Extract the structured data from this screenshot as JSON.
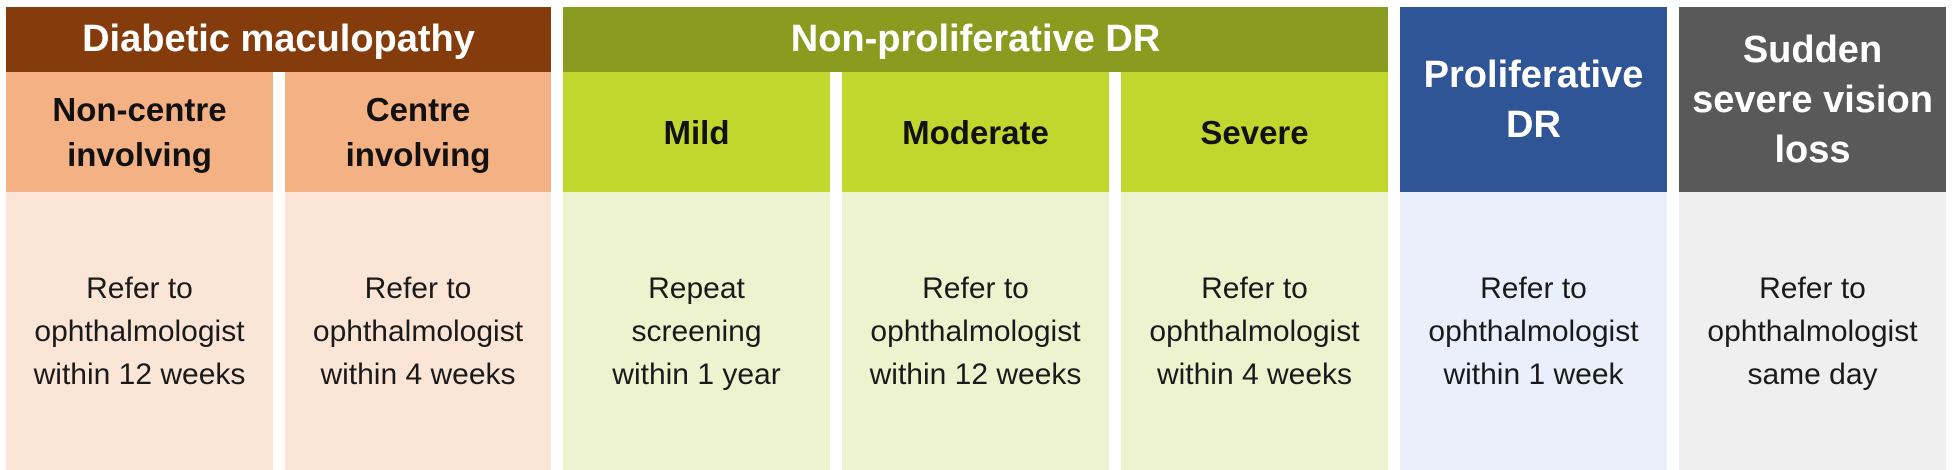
{
  "groups": {
    "maculopathy": {
      "title": "Diabetic maculopathy",
      "color": "#843c0c",
      "sub_color": "#f4b183",
      "body_color": "#fbe5d6",
      "columns": [
        {
          "label": "Non-centre\ninvolving",
          "action": "Refer to\nophthalmologist\nwithin 12 weeks"
        },
        {
          "label": "Centre\ninvolving",
          "action": "Refer to\nophthalmologist\nwithin 4 weeks"
        }
      ]
    },
    "non_proliferative": {
      "title": "Non-proliferative DR",
      "color": "#8a9c1f",
      "sub_color": "#c1d72e",
      "body_color": "#edf3cf",
      "columns": [
        {
          "label": "Mild",
          "action": "Repeat\nscreening\nwithin 1 year"
        },
        {
          "label": "Moderate",
          "action": "Refer to\nophthalmologist\nwithin 12 weeks"
        },
        {
          "label": "Severe",
          "action": "Refer to\nophthalmologist\nwithin 4 weeks"
        }
      ]
    },
    "proliferative": {
      "title": "Proliferative\nDR",
      "color": "#2f5597",
      "body_color": "#e9f0fb",
      "action": "Refer to\nophthalmologist\nwithin 1 week"
    },
    "sudden_loss": {
      "title": "Sudden\nsevere vision\nloss",
      "color": "#595959",
      "body_color": "#efefef",
      "action": "Refer to\nophthalmologist\nsame day"
    }
  }
}
